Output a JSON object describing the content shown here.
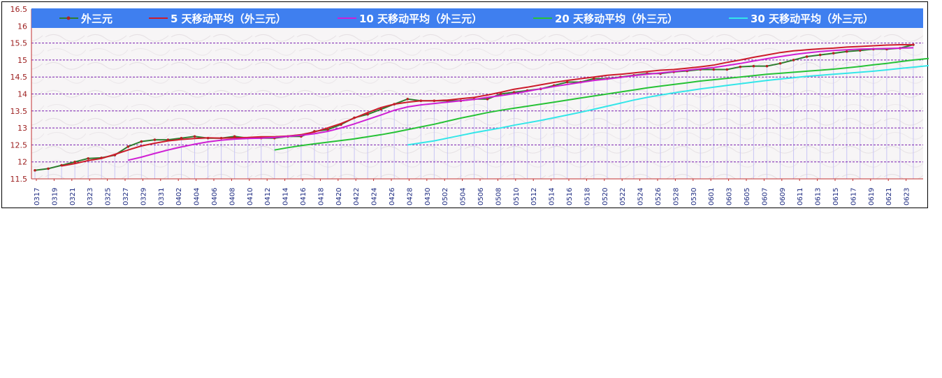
{
  "chart_data": {
    "type": "line",
    "title": "",
    "xlabel": "",
    "ylabel": "",
    "ylim": [
      11.5,
      16.5
    ],
    "yticks": [
      "11.5",
      "12",
      "12.5",
      "13",
      "13.5",
      "14",
      "14.5",
      "15",
      "15.5",
      "16",
      "16.5"
    ],
    "grid": true,
    "legend_position": "top",
    "colors": {
      "legend_bg": "#3f7fef",
      "grid": "#7a1fb0",
      "bar": "#c9c6f5",
      "axis": "#c03030"
    },
    "x_labels": [
      "0317",
      "0319",
      "0321",
      "0323",
      "0325",
      "0327",
      "0329",
      "0331",
      "0402",
      "0404",
      "0406",
      "0408",
      "0410",
      "0412",
      "0414",
      "0416",
      "0418",
      "0420",
      "0422",
      "0424",
      "0426",
      "0428",
      "0430",
      "0502",
      "0504",
      "0506",
      "0508",
      "0510",
      "0512",
      "0514",
      "0516",
      "0518",
      "0520",
      "0522",
      "0524",
      "0526",
      "0528",
      "0530",
      "0601",
      "0603",
      "0605",
      "0607",
      "0609",
      "0611",
      "0613",
      "0615",
      "0617",
      "0619",
      "0621",
      "0623"
    ],
    "series": [
      {
        "name": "外三元",
        "color": "#2e7d2e",
        "marker": true,
        "values": [
          11.75,
          11.8,
          11.9,
          12.0,
          12.1,
          12.12,
          12.2,
          12.45,
          12.6,
          12.65,
          12.65,
          12.7,
          12.75,
          12.7,
          12.7,
          12.75,
          12.7,
          12.7,
          12.7,
          12.75,
          12.75,
          12.9,
          12.95,
          13.1,
          13.3,
          13.4,
          13.55,
          13.7,
          13.85,
          13.8,
          13.8,
          13.8,
          13.8,
          13.85,
          13.85,
          14.0,
          14.05,
          14.1,
          14.15,
          14.25,
          14.35,
          14.35,
          14.45,
          14.45,
          14.5,
          14.55,
          14.6,
          14.6,
          14.65,
          14.68,
          14.72,
          14.72,
          14.72,
          14.8,
          14.82,
          14.82,
          14.9,
          15.0,
          15.1,
          15.15,
          15.2,
          15.25,
          15.28,
          15.32,
          15.32,
          15.35,
          15.45
        ]
      },
      {
        "name": "5 天移动平均（外三元）",
        "color": "#cc1b2b",
        "marker": false,
        "start": 2,
        "values": [
          11.88,
          11.95,
          12.04,
          12.1,
          12.22,
          12.35,
          12.47,
          12.55,
          12.62,
          12.66,
          12.69,
          12.71,
          12.7,
          12.71,
          12.72,
          12.74,
          12.74,
          12.76,
          12.8,
          12.88,
          13.0,
          13.13,
          13.29,
          13.45,
          13.6,
          13.7,
          13.76,
          13.8,
          13.8,
          13.82,
          13.86,
          13.9,
          13.97,
          14.05,
          14.14,
          14.2,
          14.27,
          14.34,
          14.4,
          14.45,
          14.5,
          14.55,
          14.58,
          14.62,
          14.66,
          14.7,
          14.72,
          14.76,
          14.8,
          14.85,
          14.93,
          15.0,
          15.08,
          15.15,
          15.22,
          15.27,
          15.3,
          15.33,
          15.35,
          15.38,
          15.4,
          15.42,
          15.44,
          15.45,
          15.45
        ]
      },
      {
        "name": "10 天移动平均（外三元）",
        "color": "#cf1fd4",
        "marker": false,
        "start": 7,
        "values": [
          12.05,
          12.14,
          12.25,
          12.35,
          12.44,
          12.52,
          12.59,
          12.64,
          12.67,
          12.69,
          12.7,
          12.72,
          12.75,
          12.78,
          12.83,
          12.9,
          13.0,
          13.12,
          13.25,
          13.38,
          13.52,
          13.62,
          13.68,
          13.72,
          13.76,
          13.8,
          13.84,
          13.9,
          13.95,
          14.01,
          14.08,
          14.15,
          14.22,
          14.28,
          14.34,
          14.4,
          14.44,
          14.49,
          14.54,
          14.58,
          14.62,
          14.66,
          14.7,
          14.74,
          14.78,
          14.84,
          14.9,
          14.97,
          15.04,
          15.1,
          15.16,
          15.21,
          15.25,
          15.28,
          15.3,
          15.32,
          15.33,
          15.34,
          15.35,
          15.36
        ]
      },
      {
        "name": "20 天移动平均（外三元）",
        "color": "#27c236",
        "marker": false,
        "start": 18,
        "values": [
          12.35,
          12.42,
          12.48,
          12.53,
          12.58,
          12.63,
          12.68,
          12.74,
          12.8,
          12.87,
          12.95,
          13.03,
          13.11,
          13.2,
          13.29,
          13.37,
          13.45,
          13.52,
          13.58,
          13.64,
          13.7,
          13.76,
          13.82,
          13.88,
          13.94,
          14.0,
          14.06,
          14.12,
          14.18,
          14.23,
          14.28,
          14.33,
          14.38,
          14.42,
          14.46,
          14.5,
          14.54,
          14.58,
          14.61,
          14.64,
          14.67,
          14.7,
          14.73,
          14.77,
          14.81,
          14.86,
          14.9,
          14.95,
          15.0,
          15.04,
          15.08,
          15.11,
          15.14,
          15.16,
          15.18
        ]
      },
      {
        "name": "30 天移动平均（外三元）",
        "color": "#34e6e8",
        "marker": false,
        "start": 28,
        "values": [
          12.5,
          12.56,
          12.62,
          12.7,
          12.78,
          12.86,
          12.93,
          13.0,
          13.08,
          13.15,
          13.22,
          13.3,
          13.38,
          13.46,
          13.55,
          13.64,
          13.73,
          13.82,
          13.9,
          13.97,
          14.03,
          14.09,
          14.15,
          14.2,
          14.25,
          14.3,
          14.35,
          14.4,
          14.44,
          14.48,
          14.52,
          14.55,
          14.58,
          14.61,
          14.64,
          14.67,
          14.71,
          14.75,
          14.79,
          14.83,
          14.87,
          14.91,
          14.94,
          14.97,
          15.0
        ]
      }
    ]
  }
}
